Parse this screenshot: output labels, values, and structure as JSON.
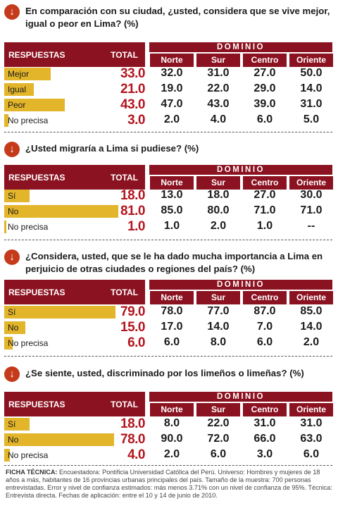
{
  "headers": {
    "respuestas": "RESPUESTAS",
    "total": "TOTAL",
    "dominio": "DOMINIO"
  },
  "chart_data": [
    {
      "type": "table",
      "title": "En comparación con su ciudad, ¿usted, considera que se vive mejor, igual o peor en Lima? (%)",
      "columns": [
        "Norte",
        "Sur",
        "Centro",
        "Oriente"
      ],
      "rows": [
        {
          "label": "Mejor",
          "total": "33.0",
          "total_value": 33.0,
          "values": [
            "32.0",
            "31.0",
            "27.0",
            "50.0"
          ]
        },
        {
          "label": "Igual",
          "total": "21.0",
          "total_value": 21.0,
          "values": [
            "19.0",
            "22.0",
            "29.0",
            "14.0"
          ]
        },
        {
          "label": "Peor",
          "total": "43.0",
          "total_value": 43.0,
          "values": [
            "47.0",
            "43.0",
            "39.0",
            "31.0"
          ]
        },
        {
          "label": "No precisa",
          "total": "3.0",
          "total_value": 3.0,
          "values": [
            "2.0",
            "4.0",
            "6.0",
            "5.0"
          ]
        }
      ]
    },
    {
      "type": "table",
      "title": "¿Usted migraría a Lima si pudiese? (%)",
      "columns": [
        "Norte",
        "Sur",
        "Centro",
        "Oriente"
      ],
      "rows": [
        {
          "label": "Sí",
          "total": "18.0",
          "total_value": 18.0,
          "values": [
            "13.0",
            "18.0",
            "27.0",
            "30.0"
          ]
        },
        {
          "label": "No",
          "total": "81.0",
          "total_value": 81.0,
          "values": [
            "85.0",
            "80.0",
            "71.0",
            "71.0"
          ]
        },
        {
          "label": "No precisa",
          "total": "1.0",
          "total_value": 1.0,
          "values": [
            "1.0",
            "2.0",
            "1.0",
            "--"
          ]
        }
      ]
    },
    {
      "type": "table",
      "title": "¿Considera, usted, que se le ha dado mucha importancia a Lima en perjuicio de otras ciudades o regiones del país? (%)",
      "columns": [
        "Norte",
        "Sur",
        "Centro",
        "Oriente"
      ],
      "rows": [
        {
          "label": "Sí",
          "total": "79.0",
          "total_value": 79.0,
          "values": [
            "78.0",
            "77.0",
            "87.0",
            "85.0"
          ]
        },
        {
          "label": "No",
          "total": "15.0",
          "total_value": 15.0,
          "values": [
            "17.0",
            "14.0",
            "7.0",
            "14.0"
          ]
        },
        {
          "label": "No precisa",
          "total": "6.0",
          "total_value": 6.0,
          "values": [
            "6.0",
            "8.0",
            "6.0",
            "2.0"
          ]
        }
      ]
    },
    {
      "type": "table",
      "title": "¿Se siente, usted, discriminado por los limeños o limeñas? (%)",
      "columns": [
        "Norte",
        "Sur",
        "Centro",
        "Oriente"
      ],
      "rows": [
        {
          "label": "Sí",
          "total": "18.0",
          "total_value": 18.0,
          "values": [
            "8.0",
            "22.0",
            "31.0",
            "31.0"
          ]
        },
        {
          "label": "No",
          "total": "78.0",
          "total_value": 78.0,
          "values": [
            "90.0",
            "72.0",
            "66.0",
            "63.0"
          ]
        },
        {
          "label": "No precisa",
          "total": "4.0",
          "total_value": 4.0,
          "values": [
            "2.0",
            "6.0",
            "3.0",
            "6.0"
          ]
        }
      ]
    }
  ],
  "ficha": {
    "label": "FICHA TÉCNICA:",
    "text": "Encuestadora: Pontificia Universidad Católica del Perú. Universo: Hombres y mujeres de 18 años a más, habitantes de 16 provincias urbanas principales del país. Tamaño de la muestra: 700 personas entrevistadas. Error y nivel de confianza estimados: más menos 3.71% con un nivel de confianza de 95%. Técnica: Entrevista directa. Fechas de aplicación: entre el 10 y 14 de junio de 2010."
  },
  "colors": {
    "header": "#8b1220",
    "bar": "#e3b52a",
    "total_text": "#b3151f",
    "icon": "#c43a1a"
  },
  "icon_name": "arrow-down-circle-icon"
}
